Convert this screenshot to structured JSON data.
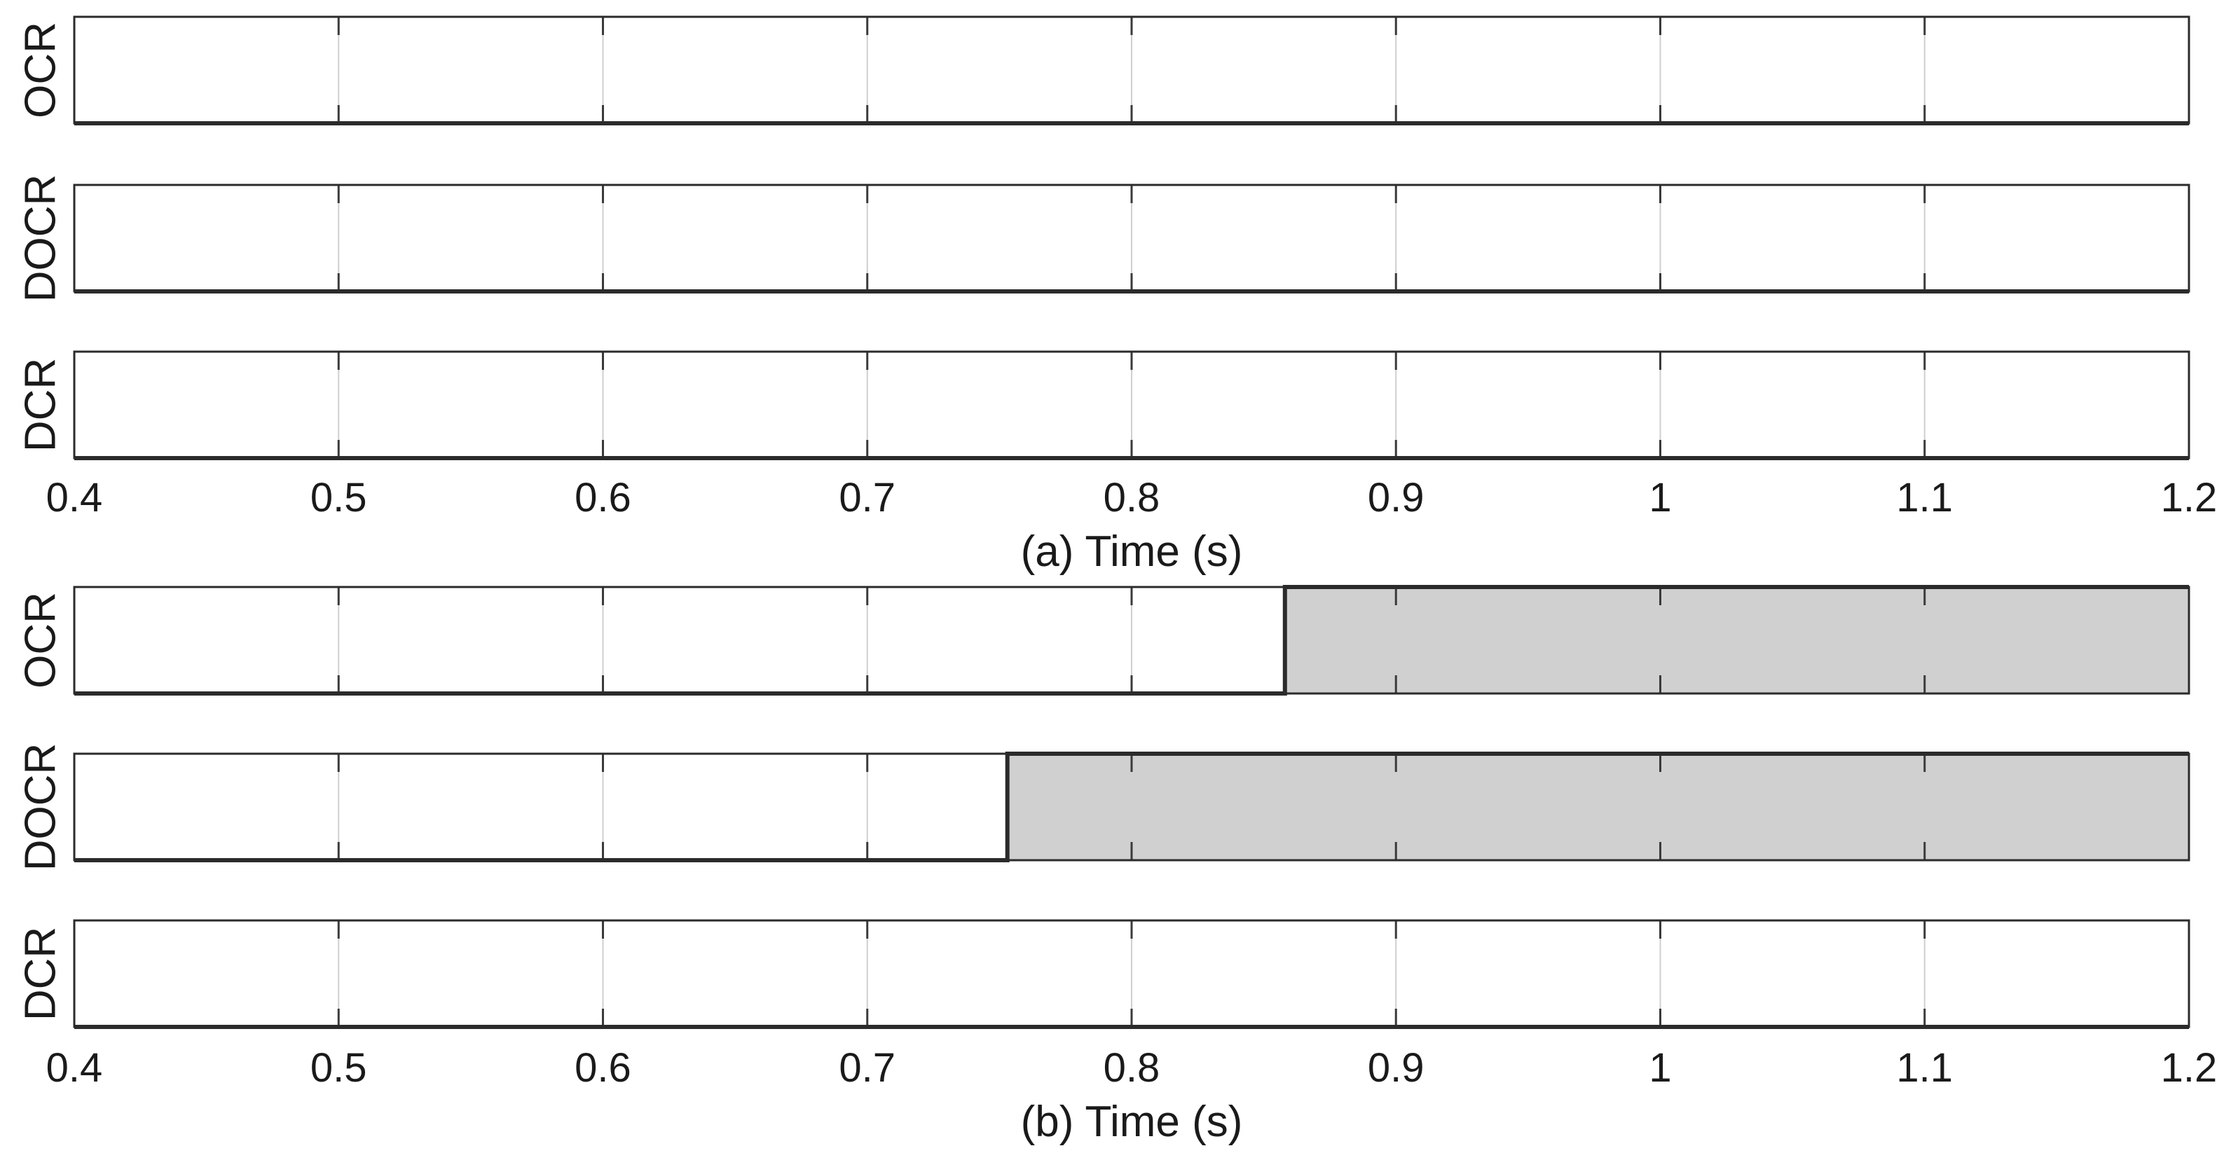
{
  "colors": {
    "frame": "#2b2b2b",
    "signal": "#2b2b2b",
    "active_fill": "#d0d0d0",
    "grid": "#cfcfcf",
    "tick": "#3a3a3a",
    "background": "#ffffff"
  },
  "chart_data": [
    {
      "type": "area",
      "panel": "a",
      "xlabel": "(a) Time (s)",
      "xlim": [
        0.4,
        1.2
      ],
      "xticks": [
        0.4,
        0.5,
        0.6,
        0.7,
        0.8,
        0.9,
        1.0,
        1.1,
        1.2
      ],
      "xtick_labels": [
        "0.4",
        "0.5",
        "0.6",
        "0.7",
        "0.8",
        "0.9",
        "1",
        "1.1",
        "1.2"
      ],
      "grid": "vertical",
      "series": [
        {
          "name": "OCR",
          "active_from": null
        },
        {
          "name": "DOCR",
          "active_from": null
        },
        {
          "name": "DCR",
          "active_from": null
        }
      ]
    },
    {
      "type": "area",
      "panel": "b",
      "xlabel": "(b) Time (s)",
      "xlim": [
        0.4,
        1.2
      ],
      "xticks": [
        0.4,
        0.5,
        0.6,
        0.7,
        0.8,
        0.9,
        1.0,
        1.1,
        1.2
      ],
      "xtick_labels": [
        "0.4",
        "0.5",
        "0.6",
        "0.7",
        "0.8",
        "0.9",
        "1",
        "1.1",
        "1.2"
      ],
      "grid": "vertical",
      "series": [
        {
          "name": "OCR",
          "active_from": 0.858
        },
        {
          "name": "DOCR",
          "active_from": 0.753
        },
        {
          "name": "DCR",
          "active_from": null
        }
      ]
    }
  ]
}
